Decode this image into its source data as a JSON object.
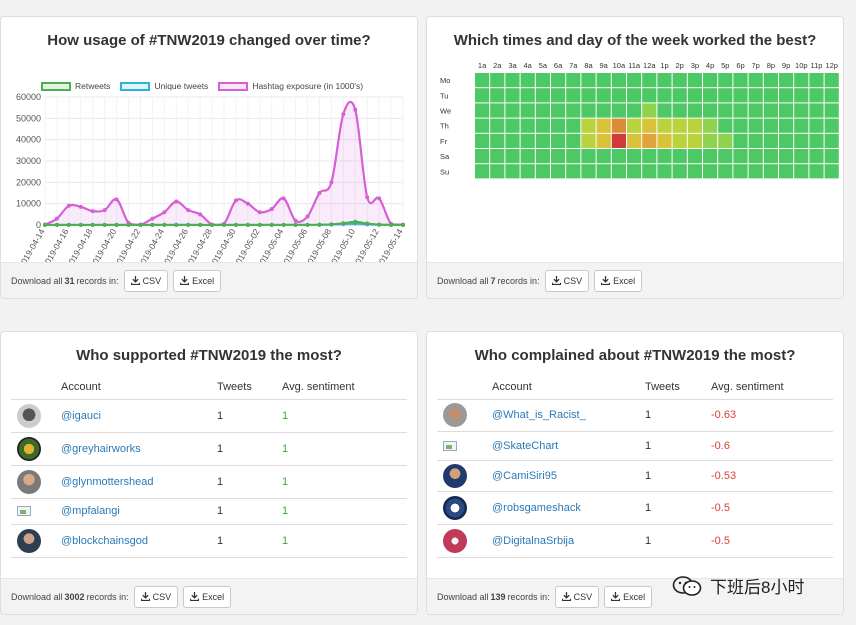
{
  "usage_panel": {
    "title": "How usage of #TNW2019 changed over time?",
    "legend": [
      {
        "label": "Retweets",
        "color": "#4caf50"
      },
      {
        "label": "Unique tweets",
        "color": "#2bb3d9"
      },
      {
        "label": "Hashtag exposure (in 1000's)",
        "color": "#d75ed7"
      }
    ],
    "footer": {
      "prefix": "Download all",
      "count": "31",
      "suffix": "records in:",
      "csv": "CSV",
      "excel": "Excel"
    }
  },
  "heatmap_panel": {
    "title": "Which times and day of the week worked the best?",
    "hours": [
      "1a",
      "2a",
      "3a",
      "4a",
      "5a",
      "6a",
      "7a",
      "8a",
      "9a",
      "10a",
      "11a",
      "12a",
      "1p",
      "2p",
      "3p",
      "4p",
      "5p",
      "6p",
      "7p",
      "8p",
      "9p",
      "10p",
      "11p",
      "12p"
    ],
    "days": [
      "Mo",
      "Tu",
      "We",
      "Th",
      "Fr",
      "Sa",
      "Su"
    ],
    "footer": {
      "prefix": "Download all",
      "count": "7",
      "suffix": "records in:",
      "csv": "CSV",
      "excel": "Excel"
    }
  },
  "supporters_panel": {
    "title": "Who supported #TNW2019 the most?",
    "columns": [
      "Account",
      "Tweets",
      "Avg. sentiment"
    ],
    "rows": [
      {
        "account": "@igauci",
        "tweets": "1",
        "sentiment": "1"
      },
      {
        "account": "@greyhairworks",
        "tweets": "1",
        "sentiment": "1"
      },
      {
        "account": "@glynmottershead",
        "tweets": "1",
        "sentiment": "1"
      },
      {
        "account": "@mpfalangi",
        "tweets": "1",
        "sentiment": "1"
      },
      {
        "account": "@blockchainsgod",
        "tweets": "1",
        "sentiment": "1"
      }
    ],
    "footer": {
      "prefix": "Download all",
      "count": "3002",
      "suffix": "records in:",
      "csv": "CSV",
      "excel": "Excel"
    }
  },
  "complainers_panel": {
    "title": "Who complained about #TNW2019 the most?",
    "columns": [
      "Account",
      "Tweets",
      "Avg. sentiment"
    ],
    "rows": [
      {
        "account": "@What_is_Racist_",
        "tweets": "1",
        "sentiment": "-0.63"
      },
      {
        "account": "@SkateChart",
        "tweets": "1",
        "sentiment": "-0.6"
      },
      {
        "account": "@CamiSiri95",
        "tweets": "1",
        "sentiment": "-0.53"
      },
      {
        "account": "@robsgameshack",
        "tweets": "1",
        "sentiment": "-0.5"
      },
      {
        "account": "@DigitalnaSrbija",
        "tweets": "1",
        "sentiment": "-0.5"
      }
    ],
    "footer": {
      "prefix": "Download all",
      "count": "139",
      "suffix": "records in:",
      "csv": "CSV",
      "excel": "Excel"
    }
  },
  "watermark": {
    "text": "下班后8小时"
  },
  "chart_data": [
    {
      "type": "line",
      "title": "How usage of #TNW2019 changed over time?",
      "ylim": [
        0,
        60000
      ],
      "yticks": [
        0,
        10000,
        20000,
        30000,
        40000,
        50000,
        60000
      ],
      "x": [
        "2019-04-14",
        "2019-04-15",
        "2019-04-16",
        "2019-04-17",
        "2019-04-18",
        "2019-04-19",
        "2019-04-20",
        "2019-04-21",
        "2019-04-22",
        "2019-04-23",
        "2019-04-24",
        "2019-04-25",
        "2019-04-26",
        "2019-04-27",
        "2019-04-28",
        "2019-04-29",
        "2019-04-30",
        "2019-05-01",
        "2019-05-02",
        "2019-05-03",
        "2019-05-04",
        "2019-05-05",
        "2019-05-06",
        "2019-05-07",
        "2019-05-08",
        "2019-05-09",
        "2019-05-10",
        "2019-05-11",
        "2019-05-12",
        "2019-05-13",
        "2019-05-14"
      ],
      "xtick_labels": [
        "2019-04-14",
        "2019-04-16",
        "2019-04-18",
        "2019-04-20",
        "2019-04-22",
        "2019-04-24",
        "2019-04-26",
        "2019-04-28",
        "2019-04-30",
        "2019-05-02",
        "2019-05-04",
        "2019-05-06",
        "2019-05-08",
        "2019-05-10",
        "2019-05-12",
        "2019-05-14"
      ],
      "series": [
        {
          "name": "Retweets",
          "values": [
            50,
            40,
            60,
            50,
            40,
            60,
            80,
            50,
            30,
            40,
            50,
            60,
            50,
            40,
            30,
            40,
            60,
            70,
            50,
            60,
            80,
            100,
            50,
            150,
            300,
            800,
            1500,
            700,
            200,
            80,
            50
          ]
        },
        {
          "name": "Unique tweets",
          "values": [
            30,
            30,
            40,
            30,
            30,
            40,
            50,
            30,
            20,
            30,
            30,
            40,
            30,
            30,
            20,
            30,
            40,
            40,
            30,
            40,
            50,
            60,
            30,
            80,
            150,
            400,
            700,
            300,
            100,
            50,
            30
          ]
        },
        {
          "name": "Hashtag exposure (in 1000's)",
          "values": [
            200,
            3000,
            9000,
            8500,
            6500,
            7000,
            12000,
            1000,
            200,
            3000,
            6000,
            11000,
            7000,
            5000,
            200,
            500,
            11500,
            10000,
            6000,
            7500,
            12500,
            2000,
            4000,
            15000,
            20000,
            52000,
            54000,
            13000,
            12500,
            500,
            200
          ]
        }
      ]
    },
    {
      "type": "heatmap",
      "title": "Which times and day of the week worked the best?",
      "x_labels": [
        "1a",
        "2a",
        "3a",
        "4a",
        "5a",
        "6a",
        "7a",
        "8a",
        "9a",
        "10a",
        "11a",
        "12a",
        "1p",
        "2p",
        "3p",
        "4p",
        "5p",
        "6p",
        "7p",
        "8p",
        "9p",
        "10p",
        "11p",
        "12p"
      ],
      "y_labels": [
        "Mo",
        "Tu",
        "We",
        "Th",
        "Fr",
        "Sa",
        "Su"
      ],
      "values": [
        [
          0,
          0,
          0,
          0,
          0,
          0,
          0,
          0,
          0,
          0,
          0,
          0,
          0,
          0,
          0,
          0,
          0,
          0,
          0,
          0,
          0,
          0,
          0,
          0
        ],
        [
          0,
          0,
          0,
          0,
          0,
          0,
          0,
          0,
          0,
          0,
          0,
          0,
          0,
          0,
          0,
          0,
          0,
          0,
          0,
          0,
          0,
          0,
          0,
          0
        ],
        [
          0,
          0,
          0,
          0,
          0,
          0,
          0,
          0,
          0,
          0,
          0,
          1,
          0,
          0,
          0,
          0,
          0,
          0,
          0,
          0,
          0,
          0,
          0,
          0
        ],
        [
          0,
          0,
          0,
          0,
          0,
          0,
          0,
          2,
          3,
          5,
          2,
          3,
          2,
          2,
          2,
          1,
          0,
          0,
          0,
          0,
          0,
          0,
          0,
          0
        ],
        [
          0,
          0,
          0,
          0,
          0,
          0,
          0,
          2,
          3,
          8,
          3,
          4,
          3,
          2,
          2,
          1,
          1,
          0,
          0,
          0,
          0,
          0,
          0,
          0
        ],
        [
          0,
          0,
          0,
          0,
          0,
          0,
          0,
          0,
          0,
          0,
          0,
          0,
          0,
          0,
          0,
          0,
          0,
          0,
          0,
          0,
          0,
          0,
          0,
          0
        ],
        [
          0,
          0,
          0,
          0,
          0,
          0,
          0,
          0,
          0,
          0,
          0,
          0,
          0,
          0,
          0,
          0,
          0,
          0,
          0,
          0,
          0,
          0,
          0,
          0
        ]
      ]
    }
  ]
}
